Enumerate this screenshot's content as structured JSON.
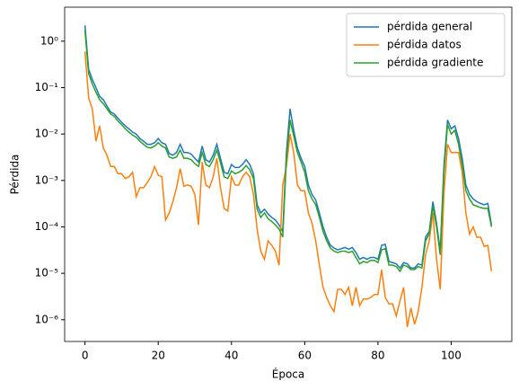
{
  "chart_data": {
    "type": "line",
    "xlabel": "Época",
    "ylabel": "Pérdida",
    "x": [
      0,
      1,
      2,
      3,
      4,
      5,
      6,
      7,
      8,
      9,
      10,
      11,
      12,
      13,
      14,
      15,
      16,
      17,
      18,
      19,
      20,
      21,
      22,
      23,
      24,
      25,
      26,
      27,
      28,
      29,
      30,
      31,
      32,
      33,
      34,
      35,
      36,
      37,
      38,
      39,
      40,
      41,
      42,
      43,
      44,
      45,
      46,
      47,
      48,
      49,
      50,
      51,
      52,
      53,
      54,
      55,
      56,
      57,
      58,
      59,
      60,
      61,
      62,
      63,
      64,
      65,
      66,
      67,
      68,
      69,
      70,
      71,
      72,
      73,
      74,
      75,
      76,
      77,
      78,
      79,
      80,
      81,
      82,
      83,
      84,
      85,
      86,
      87,
      88,
      89,
      90,
      91,
      92,
      93,
      94,
      95,
      96,
      97,
      98,
      99,
      100,
      101,
      102,
      103,
      104,
      105,
      106,
      107,
      108,
      109,
      110,
      111
    ],
    "series": [
      {
        "name": "pérdida general",
        "color": "#1f77b4",
        "values": [
          2.2,
          0.25,
          0.15,
          0.1,
          0.065,
          0.055,
          0.04,
          0.03,
          0.027,
          0.022,
          0.018,
          0.015,
          0.013,
          0.011,
          0.01,
          0.008,
          0.007,
          0.006,
          0.006,
          0.0065,
          0.008,
          0.0065,
          0.006,
          0.0038,
          0.0035,
          0.004,
          0.006,
          0.004,
          0.004,
          0.0037,
          0.003,
          0.0025,
          0.0055,
          0.0028,
          0.0025,
          0.0035,
          0.006,
          0.003,
          0.0015,
          0.0014,
          0.0022,
          0.0019,
          0.0019,
          0.0022,
          0.0028,
          0.0022,
          0.0014,
          0.0003,
          0.0002,
          0.00024,
          0.00019,
          0.00016,
          0.00014,
          0.00011,
          8e-05,
          0.004,
          0.035,
          0.012,
          0.005,
          0.003,
          0.002,
          0.0008,
          0.0005,
          0.00038,
          0.0002,
          0.0001,
          6e-05,
          4e-05,
          3.5e-05,
          3.2e-05,
          3.4e-05,
          3.6e-05,
          3.3e-05,
          3.6e-05,
          2.8e-05,
          2e-05,
          2.2e-05,
          2e-05,
          2.2e-05,
          2.2e-05,
          2e-05,
          4e-05,
          4.2e-05,
          1.8e-05,
          1.7e-05,
          1.6e-05,
          1.3e-05,
          1.7e-05,
          1.6e-05,
          1.3e-05,
          1.3e-05,
          1.6e-05,
          1.5e-05,
          6e-05,
          8e-05,
          0.00035,
          0.00012,
          3e-05,
          0.002,
          0.02,
          0.013,
          0.015,
          0.008,
          0.003,
          0.0008,
          0.0005,
          0.0004,
          0.00035,
          0.00032,
          0.0003,
          0.00032,
          0.00011
        ]
      },
      {
        "name": "pérdida datos",
        "color": "#ff7f0e",
        "values": [
          0.6,
          0.06,
          0.035,
          0.007,
          0.015,
          0.005,
          0.0035,
          0.002,
          0.002,
          0.0014,
          0.0014,
          0.0011,
          0.0012,
          0.0015,
          0.00045,
          0.0007,
          0.0007,
          0.0009,
          0.0012,
          0.002,
          0.0013,
          0.0012,
          0.00014,
          0.0002,
          0.00035,
          0.0007,
          0.0018,
          0.00075,
          0.0008,
          0.00075,
          0.0005,
          0.00011,
          0.0025,
          0.0008,
          0.0007,
          0.0012,
          0.003,
          0.0007,
          0.00025,
          0.00022,
          0.0012,
          0.0008,
          0.0008,
          0.0012,
          0.0015,
          0.0012,
          0.0005,
          9e-05,
          3e-05,
          2e-05,
          5e-05,
          4e-05,
          3e-05,
          1.5e-05,
          0.0008,
          0.002,
          0.01,
          0.004,
          0.0008,
          0.0006,
          0.0006,
          0.0002,
          0.00012,
          5e-05,
          1.5e-05,
          5e-06,
          3e-06,
          2e-06,
          1.5e-06,
          4.5e-06,
          4.5e-06,
          3.5e-06,
          5e-06,
          2e-06,
          5e-06,
          2e-06,
          2.8e-06,
          2.8e-06,
          3e-06,
          3.5e-06,
          3.5e-06,
          1.2e-05,
          3e-06,
          2.2e-06,
          2.2e-06,
          1.2e-06,
          2.5e-06,
          5e-06,
          7e-07,
          1.8e-06,
          8e-07,
          1.5e-06,
          5e-06,
          2.5e-05,
          5e-05,
          0.0002,
          2e-05,
          4.5e-06,
          0.0005,
          0.006,
          0.004,
          0.004,
          0.004,
          0.0015,
          0.0002,
          7e-05,
          0.0001,
          6e-05,
          6e-05,
          3.8e-05,
          4e-05,
          1.1e-05
        ]
      },
      {
        "name": "pérdida gradiente",
        "color": "#2ca02c",
        "values": [
          1.7,
          0.2,
          0.12,
          0.08,
          0.055,
          0.045,
          0.035,
          0.027,
          0.024,
          0.019,
          0.016,
          0.013,
          0.011,
          0.0095,
          0.0085,
          0.007,
          0.006,
          0.0052,
          0.005,
          0.0055,
          0.0065,
          0.0055,
          0.005,
          0.0032,
          0.003,
          0.0032,
          0.0045,
          0.003,
          0.003,
          0.0028,
          0.0023,
          0.002,
          0.004,
          0.0022,
          0.002,
          0.0028,
          0.0045,
          0.0024,
          0.0012,
          0.0011,
          0.0016,
          0.0014,
          0.0015,
          0.0017,
          0.0021,
          0.0017,
          0.0011,
          0.00024,
          0.00016,
          0.0002,
          0.00015,
          0.00013,
          0.00011,
          9e-05,
          6e-05,
          0.003,
          0.02,
          0.009,
          0.004,
          0.0025,
          0.0015,
          0.0006,
          0.0004,
          0.0003,
          0.00016,
          8e-05,
          5e-05,
          3.5e-05,
          3e-05,
          2.8e-05,
          3e-05,
          3e-05,
          2.8e-05,
          3e-05,
          2.2e-05,
          1.6e-05,
          1.8e-05,
          1.7e-05,
          1.9e-05,
          1.9e-05,
          1.7e-05,
          3.2e-05,
          3.4e-05,
          1.5e-05,
          1.5e-05,
          1.4e-05,
          1.1e-05,
          1.5e-05,
          1.4e-05,
          1.2e-05,
          1.2e-05,
          1.4e-05,
          1.3e-05,
          5e-05,
          7e-05,
          0.00028,
          0.0001,
          2.5e-05,
          0.0015,
          0.016,
          0.01,
          0.012,
          0.006,
          0.0022,
          0.0006,
          0.0004,
          0.0003,
          0.00028,
          0.00026,
          0.00025,
          0.00025,
          0.0001
        ]
      }
    ],
    "xlim": [
      -5.55,
      116.55
    ],
    "xticks": [
      0,
      20,
      40,
      60,
      80,
      100
    ],
    "ylim": [
      3.4e-07,
      5.4
    ],
    "yscale": "log",
    "yticks": [
      {
        "value": 1e-06,
        "label": "10⁻⁶"
      },
      {
        "value": 1e-05,
        "label": "10⁻⁵"
      },
      {
        "value": 0.0001,
        "label": "10⁻⁴"
      },
      {
        "value": 0.001,
        "label": "10⁻³"
      },
      {
        "value": 0.01,
        "label": "10⁻²"
      },
      {
        "value": 0.1,
        "label": "10⁻¹"
      },
      {
        "value": 1,
        "label": "10⁰"
      }
    ],
    "legend": "upper right",
    "grid": false
  }
}
